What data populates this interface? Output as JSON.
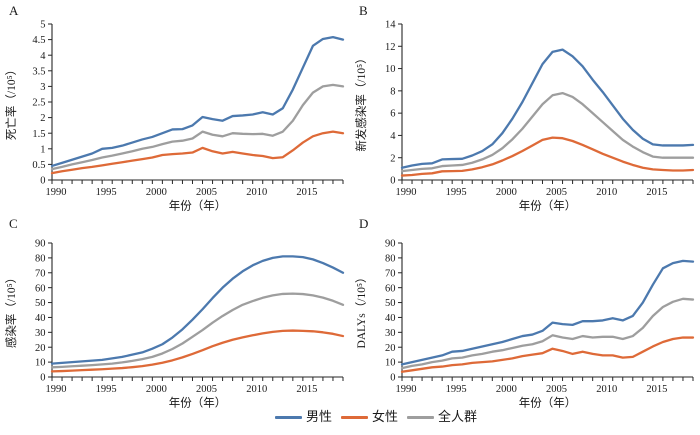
{
  "figure": {
    "background": "#ffffff",
    "axis_color": "#262626",
    "text_color": "#1a1a1a"
  },
  "legend": {
    "items": [
      {
        "label": "男性",
        "color": "#4C79AE"
      },
      {
        "label": "女性",
        "color": "#DE6A38"
      },
      {
        "label": "全人群",
        "color": "#9E9E9E"
      }
    ]
  },
  "chart_data": [
    {
      "panel": "A",
      "type": "line",
      "ylabel": "死亡率（/10⁵）",
      "xlabel": "年份（年）",
      "ylim": [
        0,
        5
      ],
      "ytick_step": 0.5,
      "yticks": [
        "0",
        "0.5",
        "1",
        "1.5",
        "2",
        "2.5",
        "3",
        "3.5",
        "4",
        "4.5",
        "5"
      ],
      "x_start": 1990,
      "x_end": 2019,
      "x_labeled_ticks": [
        1990,
        1995,
        2000,
        2005,
        2010,
        2015
      ],
      "grid": false,
      "series": [
        {
          "name": "男性",
          "color": "#4C79AE",
          "values": [
            0.45,
            0.55,
            0.65,
            0.75,
            0.85,
            1.0,
            1.03,
            1.1,
            1.2,
            1.3,
            1.38,
            1.5,
            1.62,
            1.63,
            1.75,
            2.02,
            1.95,
            1.9,
            2.05,
            2.07,
            2.1,
            2.17,
            2.1,
            2.3,
            2.9,
            3.6,
            4.3,
            4.52,
            4.58,
            4.5
          ]
        },
        {
          "name": "女性",
          "color": "#DE6A38",
          "values": [
            0.22,
            0.28,
            0.33,
            0.38,
            0.42,
            0.47,
            0.52,
            0.57,
            0.62,
            0.67,
            0.72,
            0.8,
            0.83,
            0.85,
            0.88,
            1.03,
            0.92,
            0.85,
            0.9,
            0.85,
            0.8,
            0.77,
            0.7,
            0.73,
            0.95,
            1.2,
            1.4,
            1.5,
            1.55,
            1.5
          ]
        },
        {
          "name": "全人群",
          "color": "#9E9E9E",
          "values": [
            0.35,
            0.42,
            0.5,
            0.57,
            0.64,
            0.72,
            0.78,
            0.85,
            0.92,
            1.0,
            1.06,
            1.15,
            1.23,
            1.26,
            1.33,
            1.55,
            1.45,
            1.4,
            1.5,
            1.48,
            1.47,
            1.48,
            1.42,
            1.55,
            1.9,
            2.4,
            2.8,
            3.0,
            3.05,
            3.0
          ]
        }
      ]
    },
    {
      "panel": "B",
      "type": "line",
      "ylabel": "新发感染率（/10⁵）",
      "xlabel": "年份（年）",
      "ylim": [
        0,
        14
      ],
      "ytick_step": 2,
      "yticks": [
        "0",
        "2",
        "4",
        "6",
        "8",
        "10",
        "12",
        "14"
      ],
      "x_start": 1990,
      "x_end": 2019,
      "x_labeled_ticks": [
        1990,
        1995,
        2000,
        2005,
        2010,
        2015
      ],
      "grid": false,
      "series": [
        {
          "name": "男性",
          "color": "#4C79AE",
          "values": [
            1.1,
            1.3,
            1.45,
            1.5,
            1.85,
            1.88,
            1.9,
            2.2,
            2.6,
            3.2,
            4.2,
            5.5,
            7.0,
            8.7,
            10.4,
            11.5,
            11.7,
            11.1,
            10.2,
            9.0,
            7.9,
            6.7,
            5.5,
            4.5,
            3.7,
            3.2,
            3.1,
            3.1,
            3.1,
            3.15
          ]
        },
        {
          "name": "女性",
          "color": "#DE6A38",
          "values": [
            0.4,
            0.45,
            0.55,
            0.6,
            0.78,
            0.8,
            0.82,
            0.95,
            1.15,
            1.4,
            1.75,
            2.15,
            2.6,
            3.1,
            3.6,
            3.8,
            3.75,
            3.5,
            3.15,
            2.75,
            2.35,
            2.0,
            1.65,
            1.35,
            1.1,
            0.95,
            0.9,
            0.85,
            0.85,
            0.9
          ]
        },
        {
          "name": "全人群",
          "color": "#9E9E9E",
          "values": [
            0.8,
            0.9,
            1.0,
            1.05,
            1.25,
            1.3,
            1.35,
            1.55,
            1.85,
            2.25,
            2.85,
            3.65,
            4.6,
            5.7,
            6.8,
            7.6,
            7.8,
            7.45,
            6.8,
            6.0,
            5.2,
            4.4,
            3.6,
            3.0,
            2.5,
            2.1,
            2.0,
            2.0,
            2.0,
            2.0
          ]
        }
      ]
    },
    {
      "panel": "C",
      "type": "line",
      "ylabel": "感染率（/10⁵）",
      "xlabel": "年份（年）",
      "ylim": [
        0,
        90
      ],
      "ytick_step": 10,
      "yticks": [
        "0",
        "10",
        "20",
        "30",
        "40",
        "50",
        "60",
        "70",
        "80",
        "90"
      ],
      "x_start": 1990,
      "x_end": 2019,
      "x_labeled_ticks": [
        1990,
        1995,
        2000,
        2005,
        2010,
        2015
      ],
      "grid": false,
      "series": [
        {
          "name": "男性",
          "color": "#4C79AE",
          "values": [
            9.0,
            9.5,
            10.0,
            10.5,
            11.0,
            11.5,
            12.5,
            13.5,
            15.0,
            16.5,
            19.0,
            22.0,
            26.5,
            32.0,
            38.5,
            45.5,
            53.0,
            60.0,
            66.0,
            71.0,
            75.0,
            78.0,
            80.0,
            81.0,
            81.0,
            80.5,
            79.0,
            76.5,
            73.5,
            70.0
          ]
        },
        {
          "name": "女性",
          "color": "#DE6A38",
          "values": [
            3.8,
            4.0,
            4.3,
            4.6,
            4.9,
            5.2,
            5.6,
            6.0,
            6.6,
            7.3,
            8.3,
            9.6,
            11.2,
            13.2,
            15.5,
            18.0,
            20.7,
            23.0,
            25.0,
            26.6,
            28.0,
            29.3,
            30.3,
            31.0,
            31.2,
            31.0,
            30.7,
            30.0,
            29.0,
            27.5
          ]
        },
        {
          "name": "全人群",
          "color": "#9E9E9E",
          "values": [
            6.5,
            6.8,
            7.2,
            7.6,
            8.0,
            8.5,
            9.0,
            9.8,
            10.8,
            12.0,
            13.5,
            15.8,
            18.8,
            22.5,
            27.0,
            31.5,
            36.5,
            41.0,
            45.0,
            48.5,
            51.0,
            53.2,
            54.8,
            55.8,
            56.0,
            55.7,
            54.8,
            53.3,
            51.2,
            48.5
          ]
        }
      ]
    },
    {
      "panel": "D",
      "type": "line",
      "ylabel": "DALYs（/10⁵）",
      "xlabel": "年份（年）",
      "ylim": [
        0,
        90
      ],
      "ytick_step": 10,
      "yticks": [
        "0",
        "10",
        "20",
        "30",
        "40",
        "50",
        "60",
        "70",
        "80",
        "90"
      ],
      "x_start": 1990,
      "x_end": 2019,
      "x_labeled_ticks": [
        1990,
        1995,
        2000,
        2005,
        2010,
        2015
      ],
      "grid": false,
      "series": [
        {
          "name": "男性",
          "color": "#4C79AE",
          "values": [
            8.5,
            10.0,
            11.5,
            13.0,
            14.5,
            17.0,
            17.5,
            19.0,
            20.5,
            22.0,
            23.5,
            25.5,
            27.5,
            28.5,
            31.0,
            36.5,
            35.5,
            35.0,
            37.5,
            37.5,
            38.0,
            39.5,
            38.0,
            41.0,
            50.0,
            62.0,
            73.0,
            76.5,
            78.0,
            77.5
          ]
        },
        {
          "name": "女性",
          "color": "#DE6A38",
          "values": [
            3.5,
            4.5,
            5.5,
            6.5,
            7.0,
            8.0,
            8.5,
            9.5,
            10.0,
            10.5,
            11.5,
            12.5,
            14.0,
            15.0,
            16.0,
            19.0,
            17.5,
            15.5,
            17.0,
            15.5,
            14.5,
            14.5,
            13.0,
            13.5,
            17.0,
            20.5,
            23.5,
            25.5,
            26.5,
            26.5
          ]
        },
        {
          "name": "全人群",
          "color": "#9E9E9E",
          "values": [
            6.0,
            7.5,
            8.5,
            10.0,
            11.0,
            12.5,
            13.0,
            14.5,
            15.5,
            17.0,
            18.0,
            19.5,
            21.0,
            22.0,
            24.0,
            28.0,
            26.5,
            25.5,
            27.5,
            26.5,
            27.0,
            27.0,
            25.5,
            27.5,
            33.0,
            41.0,
            47.0,
            50.5,
            52.5,
            52.0
          ]
        }
      ]
    }
  ]
}
